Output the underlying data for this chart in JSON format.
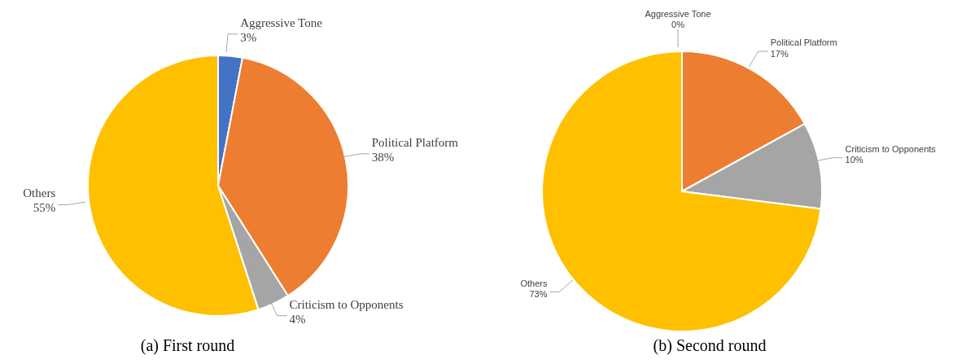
{
  "chart_data": [
    {
      "type": "pie",
      "title": "(a)   First round",
      "categories": [
        "Aggressive Tone",
        "Political Platform",
        "Criticism to Opponents",
        "Others"
      ],
      "values": [
        3,
        38,
        4,
        55
      ],
      "value_labels": [
        "3%",
        "38%",
        "4%",
        "55%"
      ],
      "colors": [
        "#4472c4",
        "#ed7d31",
        "#a5a5a5",
        "#ffc000"
      ]
    },
    {
      "type": "pie",
      "title": "(b) Second round",
      "categories": [
        "Aggressive Tone",
        "Political Platform",
        "Criticism to Opponents",
        "Others"
      ],
      "values": [
        0,
        17,
        10,
        73
      ],
      "value_labels": [
        "0%",
        "17%",
        "10%",
        "73%"
      ],
      "colors": [
        "#4472c4",
        "#ed7d31",
        "#a5a5a5",
        "#ffc000"
      ]
    }
  ]
}
